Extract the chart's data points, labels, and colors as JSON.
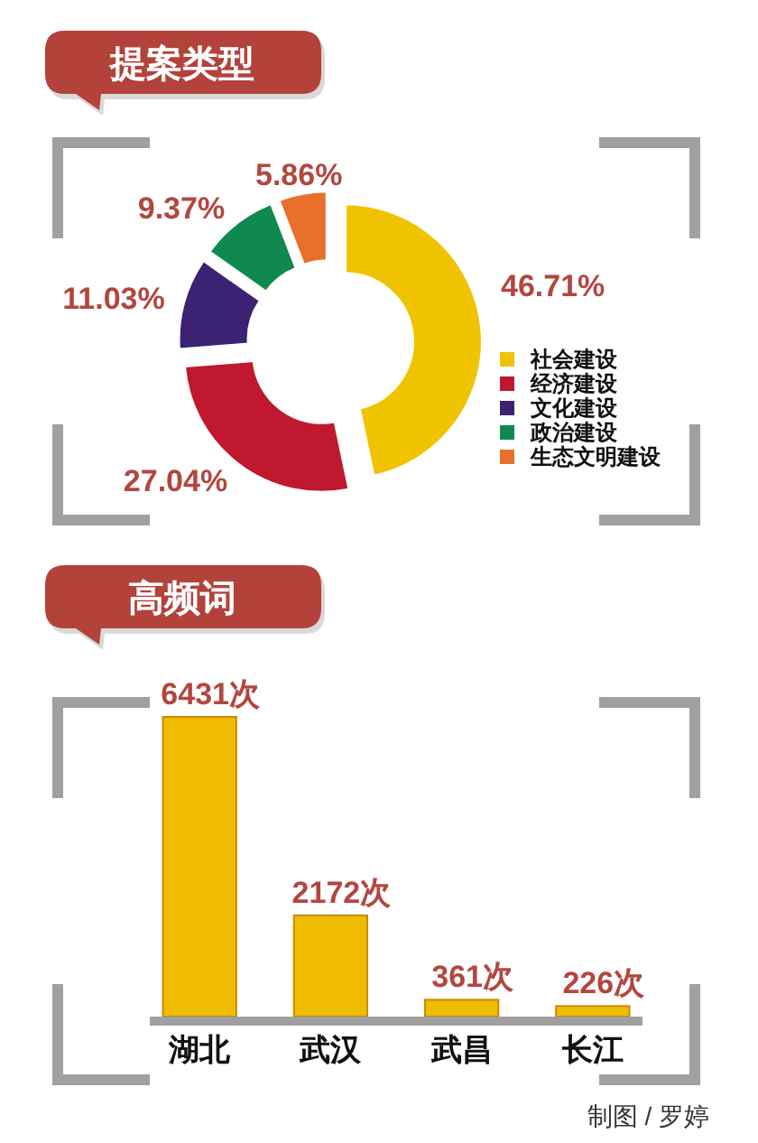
{
  "chart_data": [
    {
      "type": "donut",
      "title": "提案类型",
      "categories": [
        "社会建设",
        "经济建设",
        "文化建设",
        "政治建设",
        "生态文明建设"
      ],
      "values": [
        46.71,
        27.04,
        11.03,
        9.37,
        5.86
      ],
      "colors": [
        "#f0c300",
        "#c0182e",
        "#3b2273",
        "#10894f",
        "#e8702a"
      ],
      "value_labels": [
        "46.71%",
        "27.04%",
        "11.03%",
        "9.37%",
        "5.86%"
      ],
      "legend": "right"
    },
    {
      "type": "bar",
      "title": "高频词",
      "categories": [
        "湖北",
        "武汉",
        "武昌",
        "长江"
      ],
      "values": [
        6431,
        2172,
        361,
        226
      ],
      "color": "#f0bc00",
      "value_labels": [
        "6431次",
        "2172次",
        "361次",
        "226次"
      ],
      "annotations": [
        "制图 / 罗婷"
      ]
    }
  ]
}
